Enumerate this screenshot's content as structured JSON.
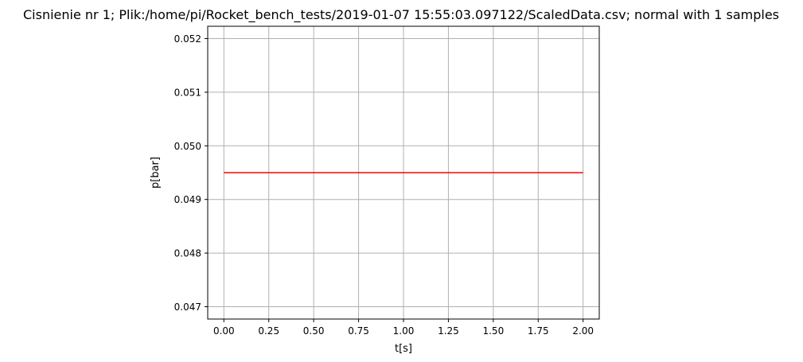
{
  "chart_data": {
    "type": "line",
    "title": "Cisnienie nr 1; Plik:/home/pi/Rocket_bench_tests/2019-01-07 15:55:03.097122/ScaledData.csv; normal with 1 samples",
    "xlabel": "t[s]",
    "ylabel": "p[bar]",
    "xlim": [
      -0.09,
      2.09
    ],
    "ylim": [
      0.04677,
      0.05223
    ],
    "xticks": [
      0.0,
      0.25,
      0.5,
      0.75,
      1.0,
      1.25,
      1.5,
      1.75,
      2.0
    ],
    "xtick_labels": [
      "0.00",
      "0.25",
      "0.50",
      "0.75",
      "1.00",
      "1.25",
      "1.50",
      "1.75",
      "2.00"
    ],
    "yticks": [
      0.047,
      0.048,
      0.049,
      0.05,
      0.051,
      0.052
    ],
    "ytick_labels": [
      "0.047",
      "0.048",
      "0.049",
      "0.050",
      "0.051",
      "0.052"
    ],
    "grid": true,
    "series": [
      {
        "color": "#ff0000",
        "x": [
          0.0,
          2.0
        ],
        "y": [
          0.0495,
          0.0495
        ]
      }
    ]
  }
}
